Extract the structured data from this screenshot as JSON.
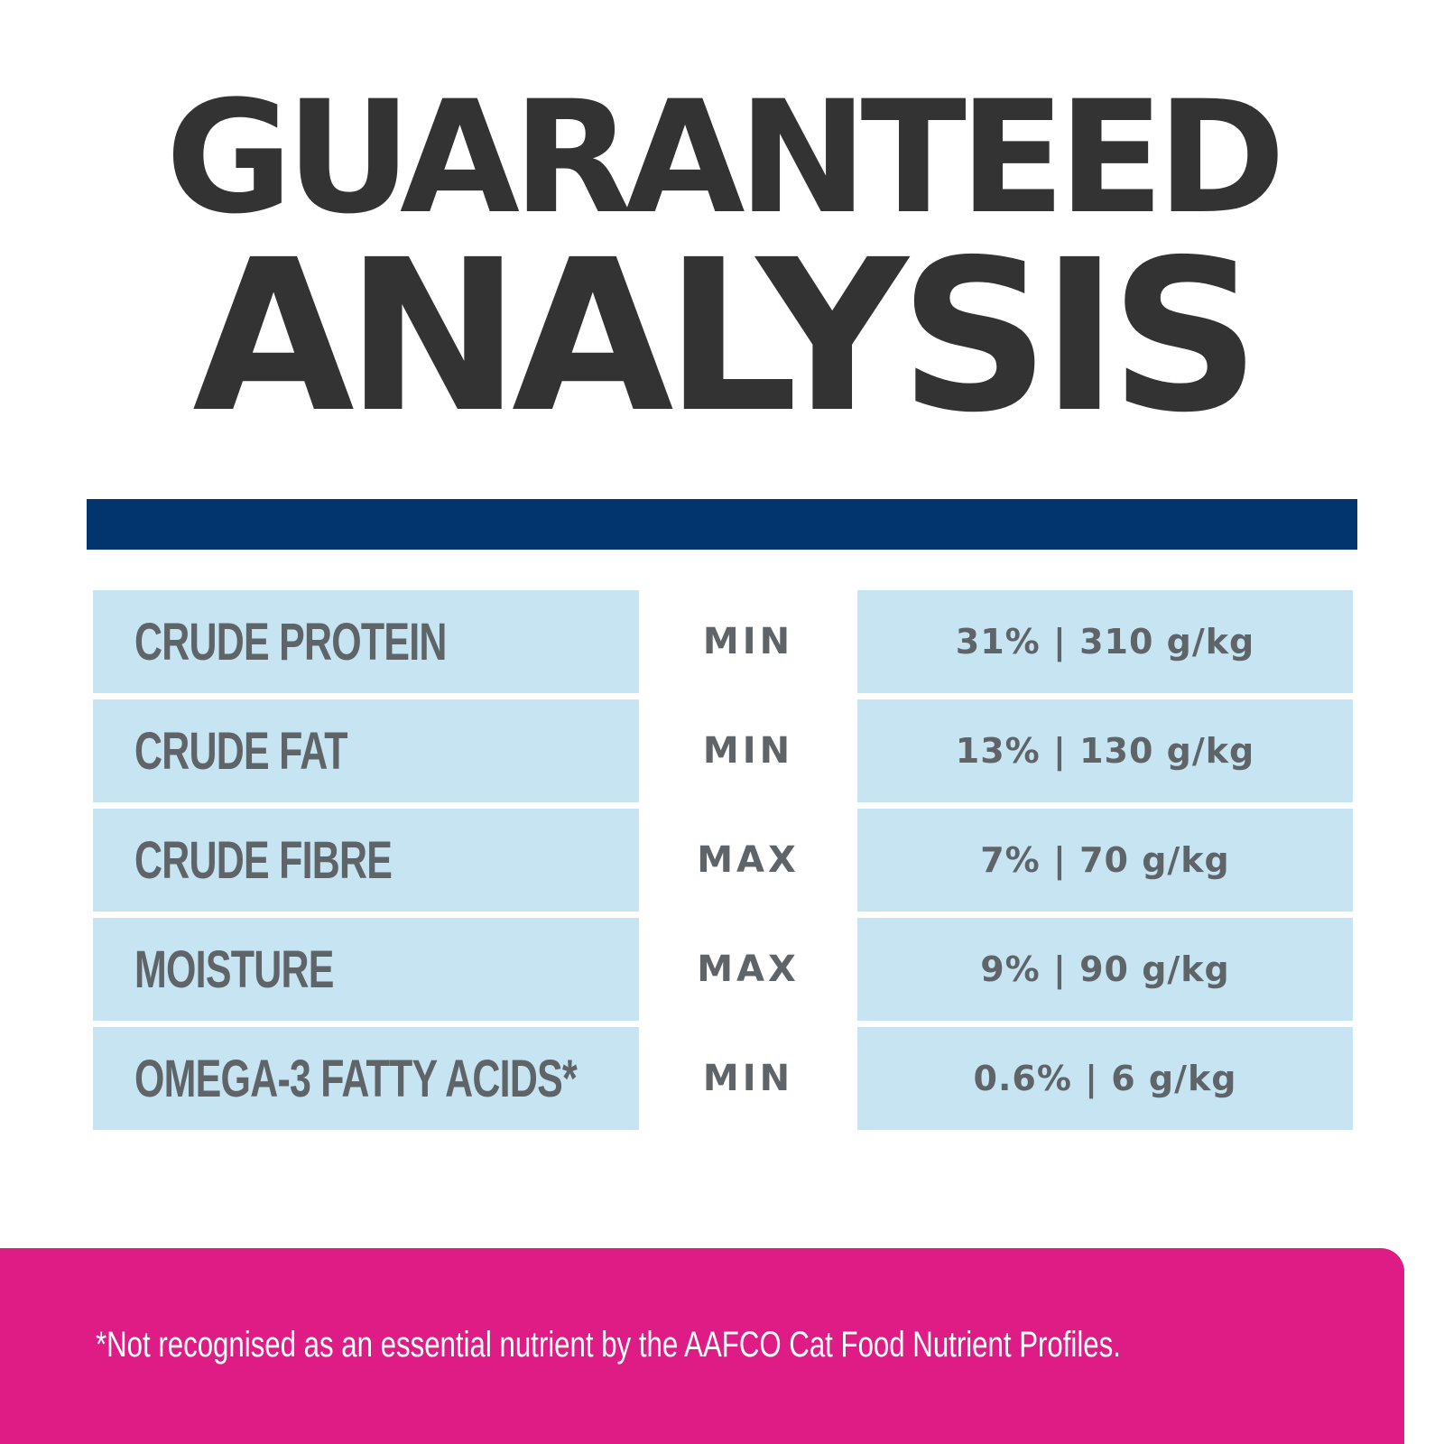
{
  "title": {
    "line1": "GUARANTEED",
    "line2": "ANALYSIS"
  },
  "colors": {
    "title_text": "#333334",
    "rule": "#02356e",
    "cell_background": "#c7e4f3",
    "cell_text": "#5f6468",
    "footer_background": "#df1b86",
    "footer_text": "#ffffff"
  },
  "analysis_rows": [
    {
      "nutrient": "CRUDE PROTEIN",
      "qualifier": "MIN",
      "value": "31% | 310 g/kg"
    },
    {
      "nutrient": "CRUDE FAT",
      "qualifier": "MIN",
      "value": "13% | 130 g/kg"
    },
    {
      "nutrient": "CRUDE FIBRE",
      "qualifier": "MAX",
      "value": "7% | 70 g/kg"
    },
    {
      "nutrient": "MOISTURE",
      "qualifier": "MAX",
      "value": "9% | 90 g/kg"
    },
    {
      "nutrient": "OMEGA-3 FATTY ACIDS*",
      "qualifier": "MIN",
      "value": "0.6% | 6 g/kg"
    }
  ],
  "footnote": "*Not recognised as an essential nutrient by the AAFCO Cat Food Nutrient Profiles."
}
